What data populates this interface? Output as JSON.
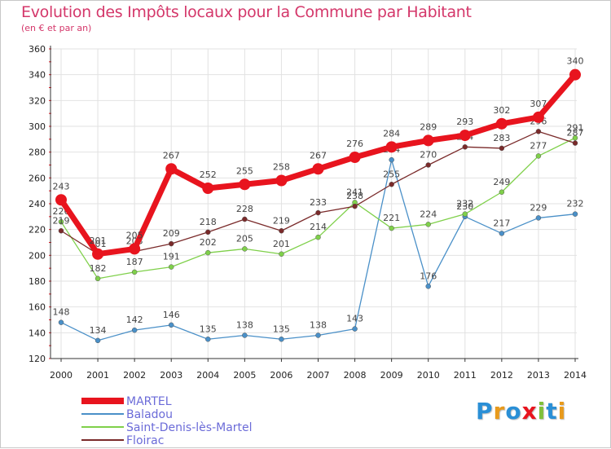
{
  "title": "Evolution des Impôts locaux pour la Commune par Habitant",
  "subtitle": "(en € et par an)",
  "logo": "Proxiti",
  "chart_data": {
    "type": "line",
    "title": "Evolution des Impôts locaux pour la Commune par Habitant",
    "ylabel": "(en € et par an)",
    "xlabel": "",
    "ylim": [
      120,
      360
    ],
    "yticks": [
      120,
      140,
      160,
      180,
      200,
      220,
      240,
      260,
      280,
      300,
      320,
      340,
      360
    ],
    "grid": true,
    "legend_position": "bottom-left",
    "categories": [
      "2000",
      "2001",
      "2002",
      "2003",
      "2004",
      "2005",
      "2006",
      "2007",
      "2008",
      "2009",
      "2010",
      "2011",
      "2012",
      "2013",
      "2014"
    ],
    "series": [
      {
        "name": "Baladou",
        "color": "#4a90c8",
        "values": [
          148,
          134,
          142,
          146,
          135,
          138,
          135,
          138,
          143,
          274,
          176,
          230,
          217,
          229,
          232
        ],
        "labels": [
          "148",
          "134",
          "142",
          "146",
          "135",
          "138",
          "135",
          "138",
          "143",
          "274",
          "176",
          "230",
          "217",
          "229",
          "232"
        ]
      },
      {
        "name": "Saint-Denis-lès-Martel",
        "color": "#7fd04a",
        "values": [
          226,
          182,
          187,
          191,
          202,
          205,
          201,
          214,
          241,
          221,
          224,
          232,
          249,
          277,
          291
        ],
        "labels": [
          "226",
          "182",
          "187",
          "191",
          "202",
          "205",
          "201",
          "214",
          "241",
          "221",
          "224",
          "232",
          "249",
          "277",
          "291"
        ]
      },
      {
        "name": "Floirac",
        "color": "#7a2a2a",
        "values": [
          219,
          201,
          203,
          209,
          218,
          228,
          219,
          233,
          238,
          255,
          270,
          284,
          283,
          296,
          287
        ],
        "labels": [
          "219",
          "201",
          "203",
          "209",
          "218",
          "228",
          "219",
          "233",
          "238",
          "255",
          "270",
          "284",
          "283",
          "296",
          "287"
        ]
      },
      {
        "name": "MARTEL",
        "color": "#e8141e",
        "values": [
          243,
          201,
          205,
          267,
          252,
          255,
          258,
          267,
          276,
          284,
          289,
          293,
          302,
          307,
          340
        ],
        "labels": [
          "243",
          "201",
          "205",
          "267",
          "252",
          "255",
          "258",
          "267",
          "276",
          "284",
          "289",
          "293",
          "302",
          "307",
          "340"
        ]
      }
    ]
  },
  "legend": [
    {
      "name": "MARTEL",
      "color": "#e8141e"
    },
    {
      "name": "Baladou",
      "color": "#4a90c8"
    },
    {
      "name": "Saint-Denis-lès-Martel",
      "color": "#7fd04a"
    },
    {
      "name": "Floirac",
      "color": "#7a2a2a"
    }
  ]
}
